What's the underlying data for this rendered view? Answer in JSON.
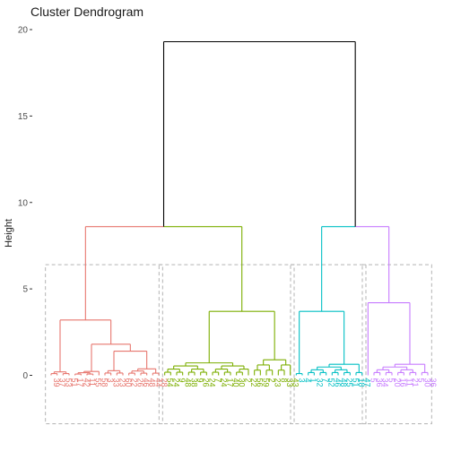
{
  "chart_data": {
    "type": "dendrogram",
    "title": "Cluster Dendrogram",
    "xlabel": "",
    "ylabel": "Height",
    "ylim": [
      -2.8,
      20.6
    ],
    "y_ticks": [
      0,
      5,
      10,
      15,
      20
    ],
    "grid": false,
    "legend": "none",
    "root_height": 19.3,
    "clusters": [
      {
        "id": 1,
        "color": "#e7766e",
        "merge_height": 8.6,
        "subclusters": [
          {
            "height": 3.2,
            "children": [
              {
                "height": 0.3,
                "leaves": [
                  "39",
                  "37",
                  "53",
                  "51"
                ]
              },
              {
                "height": 1.8,
                "children": [
                  {
                    "height": 0.3,
                    "leaves": [
                      "17",
                      "42",
                      "11",
                      "55",
                      "58"
                    ]
                  },
                  {
                    "height": 1.4,
                    "children": [
                      {
                        "height": 0.4,
                        "leaves": [
                          "3",
                          "33",
                          "23",
                          "60"
                        ]
                      },
                      {
                        "height": 0.5,
                        "leaves": [
                          "22",
                          "26",
                          "46",
                          "48",
                          "44",
                          "28"
                        ]
                      }
                    ]
                  }
                ]
              }
            ]
          }
        ],
        "leaf_labels": [
          "39",
          "37",
          "53",
          "51",
          "17",
          "42",
          "11",
          "55",
          "58",
          "3",
          "33",
          "23",
          "60",
          "22",
          "26",
          "46",
          "48",
          "44",
          "28"
        ]
      },
      {
        "id": 2,
        "color": "#7cae00",
        "merge_height": 8.6,
        "subclusters": [
          {
            "height": 3.7,
            "children": [
              {
                "height": 0.9,
                "leaves": [
                  "54",
                  "24",
                  "9",
                  "48",
                  "38",
                  "9",
                  "26",
                  "24",
                  "7",
                  "24",
                  "17",
                  "40",
                  "30",
                  "2",
                  "22"
                ]
              },
              {
                "height": 1.2,
                "leaves": [
                  "56",
                  "59",
                  "2",
                  "23",
                  "8",
                  "33",
                  "43"
                ]
              }
            ]
          }
        ],
        "leaf_labels": [
          "54",
          "24",
          "9",
          "48",
          "38",
          "9",
          "26",
          "24",
          "7",
          "24",
          "17",
          "40",
          "30",
          "2",
          "22",
          "56",
          "59",
          "2",
          "23",
          "8",
          "33",
          "43"
        ]
      },
      {
        "id": 3,
        "color": "#00bfc4",
        "merge_height": 8.6,
        "subclusters": [
          {
            "height": 3.7,
            "children": [
              {
                "height": 0.2,
                "leaves": [
                  "3",
                  "4"
                ]
              },
              {
                "height": 0.8,
                "leaves": [
                  "1",
                  "32",
                  "7",
                  "52",
                  "46",
                  "48",
                  "25",
                  "51",
                  "18",
                  "47"
                ]
              }
            ]
          }
        ],
        "leaf_labels": [
          "3",
          "4",
          "1",
          "32",
          "7",
          "52",
          "46",
          "48",
          "25",
          "51",
          "18",
          "47"
        ]
      },
      {
        "id": 4,
        "color": "#c77cff",
        "merge_height": 8.6,
        "subclusters": [
          {
            "height": 4.2,
            "children": [
              {
                "height": 0.3,
                "leaves": [
                  "5"
                ]
              },
              {
                "height": 0.8,
                "leaves": [
                  "36",
                  "34",
                  "5",
                  "20",
                  "16",
                  "11",
                  "21",
                  "5",
                  "30",
                  "36"
                ]
              }
            ]
          }
        ],
        "leaf_labels": [
          "5",
          "36",
          "34",
          "5",
          "20",
          "16",
          "11",
          "21",
          "5",
          "30",
          "36"
        ]
      }
    ]
  }
}
